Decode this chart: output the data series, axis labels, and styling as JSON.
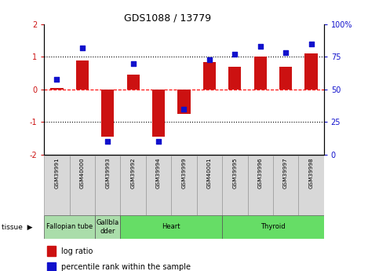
{
  "title": "GDS1088 / 13779",
  "samples": [
    "GSM39991",
    "GSM40000",
    "GSM39993",
    "GSM39992",
    "GSM39994",
    "GSM39999",
    "GSM40001",
    "GSM39995",
    "GSM39996",
    "GSM39997",
    "GSM39998"
  ],
  "log_ratio": [
    0.05,
    0.9,
    -1.45,
    0.45,
    -1.45,
    -0.75,
    0.85,
    0.7,
    1.0,
    0.7,
    1.1
  ],
  "percentile_rank": [
    58,
    82,
    10,
    70,
    10,
    35,
    73,
    77,
    83,
    78,
    85
  ],
  "bar_color": "#cc1111",
  "dot_color": "#1111cc",
  "ylim_left": [
    -2,
    2
  ],
  "ylim_right": [
    0,
    100
  ],
  "yticks_left": [
    -2,
    -1,
    0,
    1,
    2
  ],
  "yticks_right": [
    0,
    25,
    50,
    75,
    100
  ],
  "ytick_labels_right": [
    "0",
    "25",
    "50",
    "75",
    "100%"
  ],
  "ytick_labels_left": [
    "-2",
    "-1",
    "0",
    "1",
    "2"
  ],
  "tissue_groups": [
    {
      "label": "Fallopian tube",
      "indices": [
        0,
        1
      ],
      "color": "#aaddaa"
    },
    {
      "label": "Gallbla\ndder",
      "indices": [
        2
      ],
      "color": "#aaddaa"
    },
    {
      "label": "Heart",
      "indices": [
        3,
        4,
        5,
        6
      ],
      "color": "#66dd66"
    },
    {
      "label": "Thyroid",
      "indices": [
        7,
        8,
        9,
        10
      ],
      "color": "#66dd66"
    }
  ],
  "legend_bar_label": "log ratio",
  "legend_dot_label": "percentile rank within the sample",
  "background_color": "#ffffff"
}
